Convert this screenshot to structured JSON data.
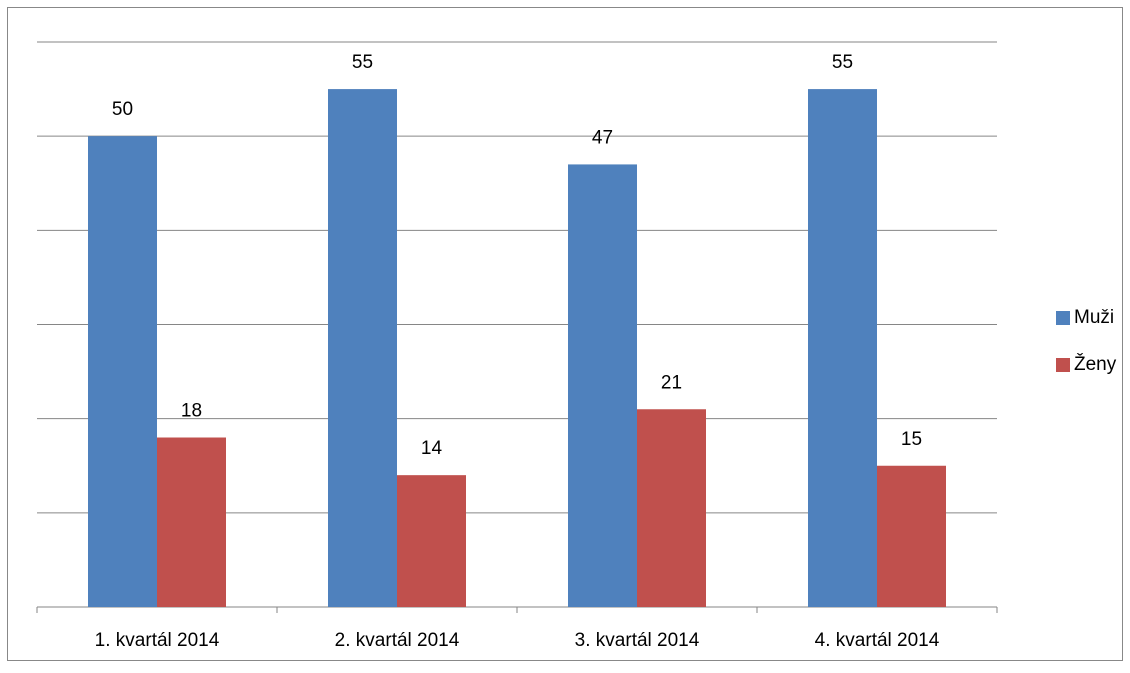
{
  "chart_data": {
    "type": "bar",
    "categories": [
      "1. kvartál 2014",
      "2. kvartál 2014",
      "3. kvartál 2014",
      "4. kvartál 2014"
    ],
    "series": [
      {
        "name": "Muži",
        "color": "#4f81bd",
        "values": [
          50,
          55,
          47,
          55
        ]
      },
      {
        "name": "Ženy",
        "color": "#c0504d",
        "values": [
          18,
          14,
          21,
          15
        ]
      }
    ],
    "ylim": [
      0,
      60
    ],
    "yticks": [
      0,
      10,
      20,
      30,
      40,
      50,
      60
    ],
    "grid": true,
    "legend": "right"
  }
}
